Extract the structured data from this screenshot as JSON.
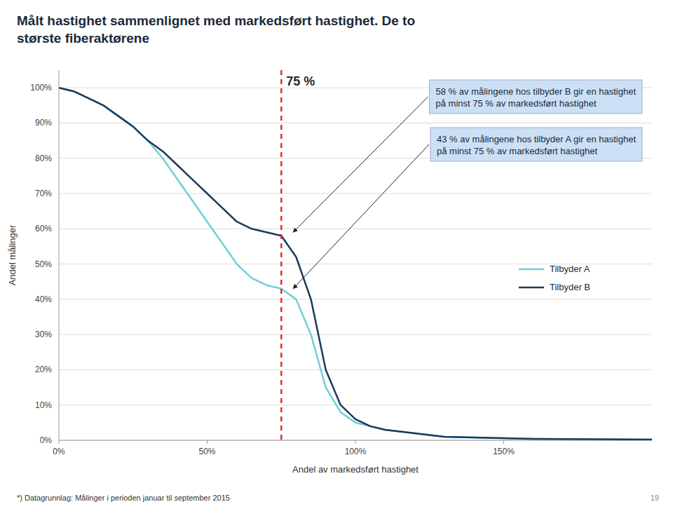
{
  "chart_data": {
    "type": "line",
    "title": "Målt hastighet sammenlignet med markedsført hastighet. De to\nstørste fiberaktørene",
    "x_label": "Andel av markedsført hastighet",
    "y_label": "Andel målinger",
    "footnote": "*) Datagrunnlag: Målinger i perioden januar til september 2015",
    "page_number": "19",
    "x": [
      0,
      0.05,
      0.1,
      0.15,
      0.2,
      0.25,
      0.3,
      0.35,
      0.4,
      0.45,
      0.5,
      0.55,
      0.6,
      0.65,
      0.7,
      0.75,
      0.8,
      0.85,
      0.9,
      0.95,
      1.0,
      1.05,
      1.1,
      1.15,
      1.2,
      1.25,
      1.3,
      1.4,
      1.5,
      1.6,
      1.8,
      2.0
    ],
    "series": [
      {
        "name": "Tilbyder A",
        "color": "#6dd0d8",
        "values": [
          1.0,
          0.99,
          0.97,
          0.95,
          0.92,
          0.89,
          0.85,
          0.8,
          0.74,
          0.68,
          0.62,
          0.56,
          0.5,
          0.46,
          0.44,
          0.43,
          0.4,
          0.3,
          0.15,
          0.08,
          0.05,
          0.04,
          0.03,
          0.025,
          0.02,
          0.015,
          0.01,
          0.008,
          0.006,
          0.004,
          0.003,
          0.002
        ]
      },
      {
        "name": "Tilbyder B",
        "color": "#1a3a5c",
        "values": [
          1.0,
          0.99,
          0.97,
          0.95,
          0.92,
          0.89,
          0.85,
          0.82,
          0.78,
          0.74,
          0.7,
          0.66,
          0.62,
          0.6,
          0.59,
          0.58,
          0.52,
          0.4,
          0.2,
          0.1,
          0.06,
          0.04,
          0.03,
          0.025,
          0.02,
          0.015,
          0.01,
          0.008,
          0.006,
          0.004,
          0.003,
          0.002
        ]
      }
    ],
    "xlim": [
      0,
      2.0
    ],
    "xticks": [
      {
        "value": 0,
        "label": "0%"
      },
      {
        "value": 0.5,
        "label": "50%"
      },
      {
        "value": 1.0,
        "label": "100%"
      },
      {
        "value": 1.5,
        "label": "150%"
      }
    ],
    "ylim": [
      0,
      1.05
    ],
    "yticks": [
      {
        "value": 0,
        "label": "0%"
      },
      {
        "value": 0.1,
        "label": "10%"
      },
      {
        "value": 0.2,
        "label": "20%"
      },
      {
        "value": 0.3,
        "label": "30%"
      },
      {
        "value": 0.4,
        "label": "40%"
      },
      {
        "value": 0.5,
        "label": "50%"
      },
      {
        "value": 0.6,
        "label": "60%"
      },
      {
        "value": 0.7,
        "label": "70%"
      },
      {
        "value": 0.8,
        "label": "80%"
      },
      {
        "value": 0.9,
        "label": "90%"
      },
      {
        "value": 1.0,
        "label": "100%"
      }
    ],
    "grid": "y",
    "legend": "right",
    "vline": {
      "x": 0.75,
      "label": "75 %",
      "color": "#e03030"
    },
    "annotations": [
      {
        "text": "58 % av målingene hos tilbyder B gir en hastighet\npå minst 75 % av markedsført hastighet",
        "x": 0.79,
        "y": 0.59,
        "color": "#cce0f5"
      },
      {
        "text": "43 % av målingene hos tilbyder A gir en hastighet\npå minst 75 % av markedsført hastighet",
        "x": 0.79,
        "y": 0.43,
        "color": "#cce0f5"
      }
    ]
  }
}
